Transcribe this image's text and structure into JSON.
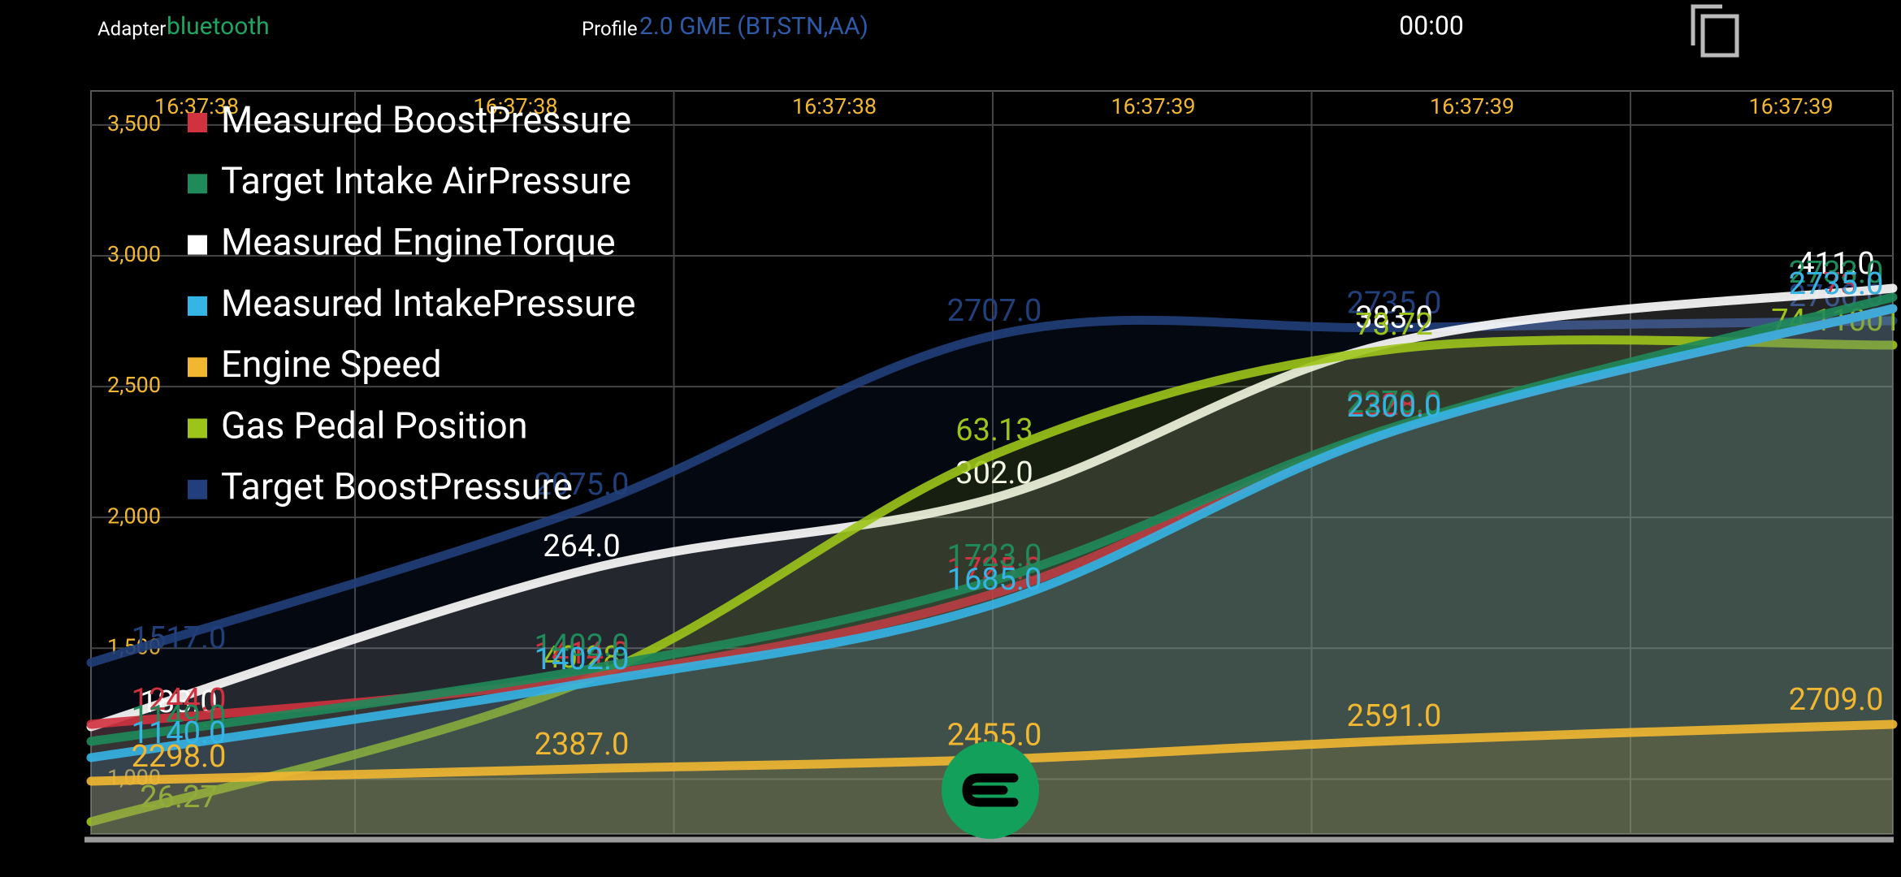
{
  "header": {
    "adapter_label": "Adapter",
    "adapter": "bluetooth",
    "profile_label": "Profile",
    "profile": "2.0 GME (BT,STN,AA)",
    "timer": "00:00"
  },
  "chart_data": {
    "type": "line",
    "xticks": [
      "16:37:38",
      "16:37:38",
      "16:37:38",
      "16:37:39",
      "16:37:39",
      "16:37:39"
    ],
    "ylim": [
      790,
      3630
    ],
    "yticks": [
      {
        "value": 1000,
        "label": "1,000"
      },
      {
        "value": 1500,
        "label": "1,500"
      },
      {
        "value": 2000,
        "label": "2,000"
      },
      {
        "value": 2500,
        "label": "2,500"
      },
      {
        "value": 3000,
        "label": "3,000"
      },
      {
        "value": 3500,
        "label": "3,500"
      }
    ],
    "grid": true,
    "legend": "top-left",
    "series": [
      {
        "name": "Measured BoostPressure",
        "color": "#d0323f",
        "values": [
          1244,
          1414,
          1725,
          2328,
          2773
        ],
        "value_labels": [
          "1244.0",
          "1414.0",
          "1725.0",
          "2328.0",
          "2773.0"
        ]
      },
      {
        "name": "Target Intake AirPressure",
        "color": "#1f8a5a",
        "values": [
          1149,
          1402,
          1723,
          2270,
          2733
        ],
        "value_labels": [
          "1149.0",
          "1402.0",
          "1723.0",
          "2270.0",
          "2733.0"
        ]
      },
      {
        "name": "Measured EngineTorque",
        "color": "#ffffff",
        "values": [
          183,
          264,
          302,
          383,
          411
        ],
        "value_labels": [
          "183.0",
          "264.0",
          "302.0",
          "383.0",
          "411.0"
        ]
      },
      {
        "name": "Measured IntakePressure",
        "color": "#35b4e6",
        "values": [
          1140,
          1402,
          1685,
          2300,
          2735
        ],
        "value_labels": [
          "1140.0",
          "1402.0",
          "1685.0",
          "2300.0",
          "2735.0"
        ]
      },
      {
        "name": "Engine Speed",
        "color": "#f2b731",
        "values": [
          2298,
          2387,
          2455,
          2591,
          2709
        ],
        "value_labels": [
          "2298.0",
          "2387.0",
          "2455.0",
          "2591.0",
          "2709.0"
        ]
      },
      {
        "name": "Gas Pedal Position",
        "color": "#9cc41a",
        "values": [
          26.27,
          40.28,
          63.13,
          73.72,
          74.11001
        ]
      },
      {
        "name": "Target BoostPressure",
        "color": "#213f7a",
        "values": [
          1517,
          2075,
          2707,
          2735,
          2760
        ],
        "value_labels": [
          "1517.0",
          "2075.0",
          "2707.0",
          "2735.0",
          "2760.0"
        ]
      }
    ]
  }
}
